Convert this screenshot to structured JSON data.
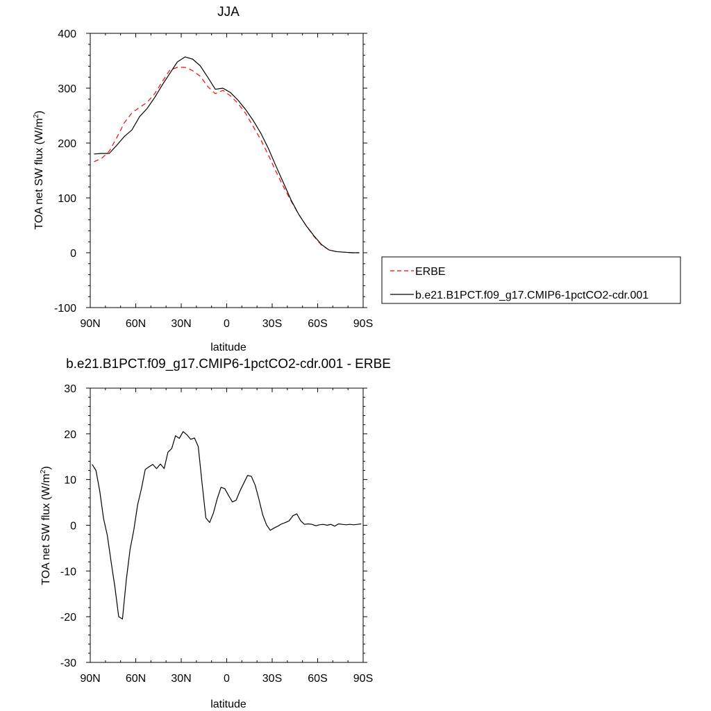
{
  "chart_data": [
    {
      "type": "line",
      "title": "JJA",
      "xlabel": "latitude",
      "ylabel": "TOA net SW flux (W/m",
      "ylabel_sup": "2",
      "ylabel_end": ")",
      "xlim": [
        90,
        -90
      ],
      "ylim": [
        -100,
        400
      ],
      "xticks": [
        90,
        60,
        30,
        0,
        -30,
        -60,
        -90
      ],
      "xtick_labels": [
        "90N",
        "60N",
        "30N",
        "0",
        "30S",
        "60S",
        "90S"
      ],
      "yticks": [
        -100,
        0,
        100,
        200,
        300,
        400
      ],
      "ytick_labels": [
        "-100",
        "0",
        "100",
        "200",
        "300",
        "400"
      ],
      "legend": "right",
      "series": [
        {
          "name": "ERBE",
          "color": "#ff0000",
          "dash": true,
          "x": [
            87.5,
            82.5,
            77.5,
            72.5,
            67.5,
            62.5,
            57.5,
            52.5,
            47.5,
            42.5,
            37.5,
            32.5,
            27.5,
            22.5,
            17.5,
            12.5,
            7.5,
            2.5,
            -2.5,
            -7.5,
            -12.5,
            -17.5,
            -22.5,
            -27.5,
            -32.5,
            -37.5,
            -42.5,
            -47.5,
            -52.5,
            -57.5,
            -62.5,
            -67.5,
            -72.5,
            -77.5,
            -82.5,
            -87.5
          ],
          "values": [
            166,
            172,
            185,
            210,
            237,
            255,
            265,
            274,
            290,
            312,
            333,
            338,
            338,
            332,
            322,
            303,
            290,
            296,
            286,
            272,
            254,
            230,
            206,
            178,
            148,
            120,
            94,
            70,
            49,
            30,
            14,
            5,
            2,
            1,
            0,
            0
          ]
        },
        {
          "name": "b.e21.B1PCT.f09_g17.CMIP6-1pctCO2-cdr.001",
          "color": "#000000",
          "dash": false,
          "x": [
            87.5,
            82.5,
            77.5,
            72.5,
            67.5,
            62.5,
            57.5,
            52.5,
            47.5,
            42.5,
            37.5,
            32.5,
            27.5,
            22.5,
            17.5,
            12.5,
            7.5,
            2.5,
            -2.5,
            -7.5,
            -12.5,
            -17.5,
            -22.5,
            -27.5,
            -32.5,
            -37.5,
            -42.5,
            -47.5,
            -52.5,
            -57.5,
            -62.5,
            -67.5,
            -72.5,
            -77.5,
            -82.5,
            -87.5
          ],
          "values": [
            180,
            181,
            181,
            196,
            212,
            224,
            248,
            263,
            283,
            306,
            327,
            348,
            357,
            353,
            341,
            320,
            298,
            300,
            292,
            278,
            261,
            241,
            218,
            190,
            158,
            127,
            96,
            70,
            49,
            31,
            15,
            5,
            2,
            1,
            0,
            0
          ]
        }
      ]
    },
    {
      "type": "line",
      "title": "b.e21.B1PCT.f09_g17.CMIP6-1pctCO2-cdr.001 - ERBE",
      "xlabel": "latitude",
      "ylabel": "TOA net SW flux (W/m",
      "ylabel_sup": "2",
      "ylabel_end": ")",
      "xlim": [
        90,
        -90
      ],
      "ylim": [
        -30,
        30
      ],
      "xticks": [
        90,
        60,
        30,
        0,
        -30,
        -60,
        -90
      ],
      "xtick_labels": [
        "90N",
        "60N",
        "30N",
        "0",
        "30S",
        "60S",
        "90S"
      ],
      "yticks": [
        -30,
        -20,
        -10,
        0,
        10,
        20,
        30
      ],
      "ytick_labels": [
        "-30",
        "-20",
        "-10",
        "0",
        "10",
        "20",
        "30"
      ],
      "series": [
        {
          "color": "#000000",
          "dash": false,
          "x": [
            88.75,
            86.25,
            83.75,
            81.25,
            78.75,
            76.25,
            73.75,
            71.25,
            68.75,
            66.25,
            63.75,
            61.25,
            58.75,
            56.25,
            53.75,
            51.25,
            48.75,
            46.25,
            43.75,
            41.25,
            38.75,
            36.25,
            33.75,
            31.25,
            28.75,
            26.25,
            23.75,
            21.25,
            18.75,
            16.25,
            13.75,
            11.25,
            8.75,
            6.25,
            3.75,
            1.25,
            -1.25,
            -3.75,
            -6.25,
            -8.75,
            -11.25,
            -13.75,
            -16.25,
            -18.75,
            -21.25,
            -23.75,
            -26.25,
            -28.75,
            -31.25,
            -33.75,
            -36.25,
            -38.75,
            -41.25,
            -43.75,
            -46.25,
            -48.75,
            -51.25,
            -53.75,
            -56.25,
            -58.75,
            -61.25,
            -63.75,
            -66.25,
            -68.75,
            -71.25,
            -73.75,
            -76.25,
            -78.75,
            -81.25,
            -83.75,
            -86.25,
            -88.75
          ],
          "values": [
            13.3,
            12,
            7.5,
            1.5,
            -2.2,
            -8,
            -13.5,
            -20,
            -20.5,
            -12,
            -5.3,
            -1,
            4.5,
            8,
            12.2,
            12.8,
            13.3,
            12.4,
            13.4,
            12.4,
            16,
            16.8,
            19.6,
            19,
            20.5,
            19.8,
            18.8,
            19.1,
            17.2,
            9.2,
            1.6,
            0.6,
            2.7,
            5.8,
            8.3,
            8,
            6.5,
            5.1,
            5.5,
            7.5,
            9.2,
            10.9,
            10.7,
            8.8,
            5.7,
            2.3,
            0.1,
            -1.1,
            -0.6,
            -0.2,
            0.3,
            0.6,
            1,
            2.1,
            2.5,
            1,
            0.2,
            0.3,
            0.2,
            -0.1,
            0.1,
            0.2,
            0,
            0.2,
            -0.2,
            0.3,
            0.2,
            0.1,
            0.2,
            0.1,
            0.2,
            0.3
          ]
        }
      ]
    }
  ]
}
